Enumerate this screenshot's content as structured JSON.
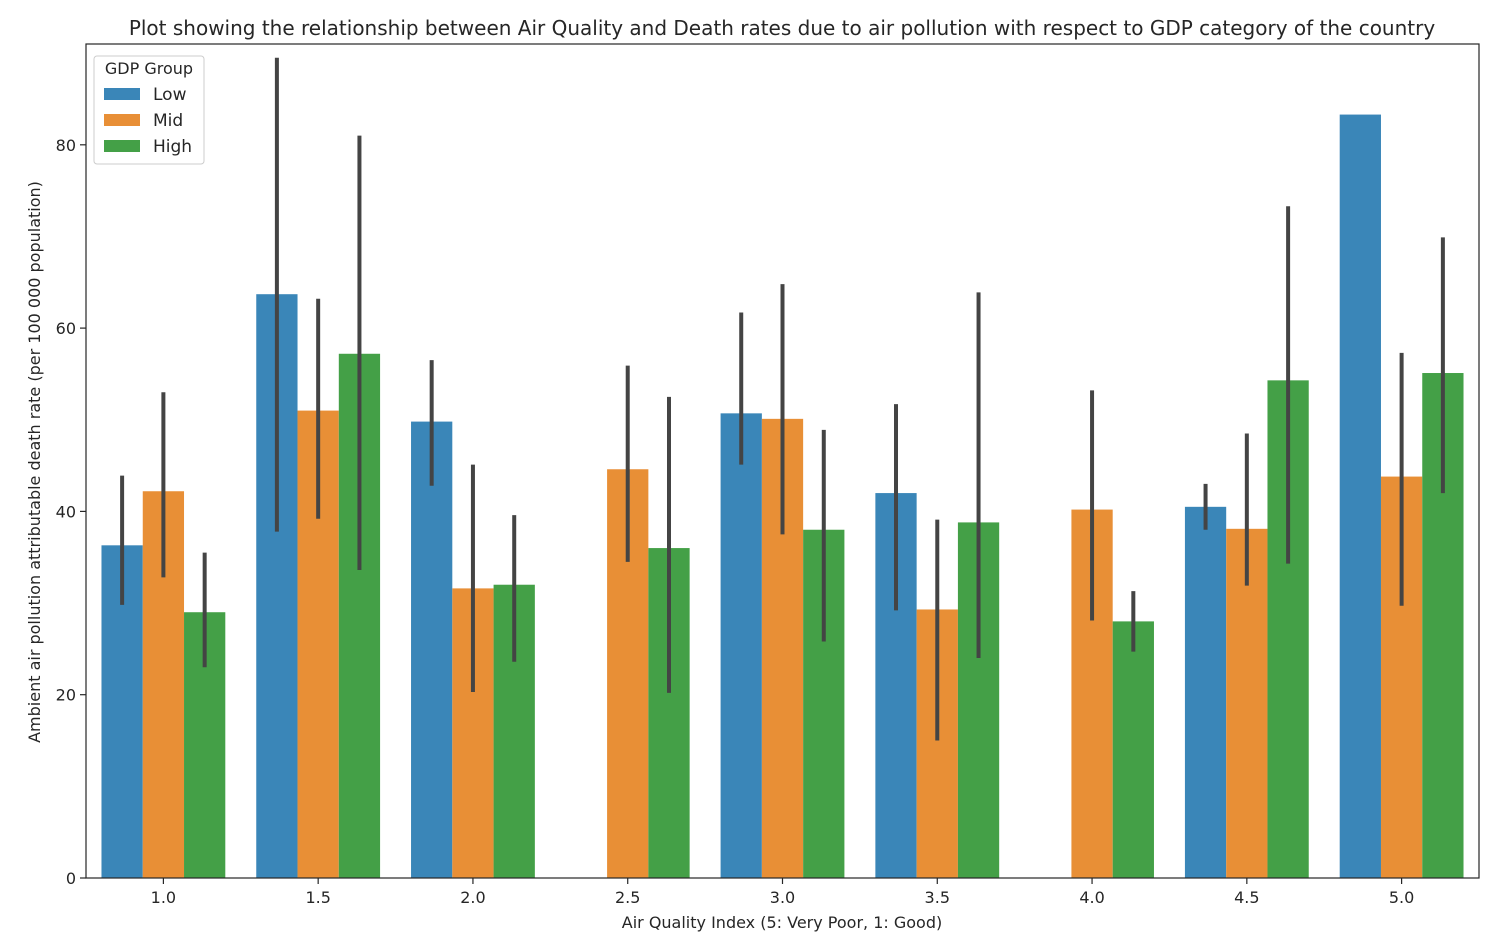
{
  "chart_data": {
    "type": "bar",
    "title": "Plot showing the relationship between Air Quality and Death rates due to air pollution with respect to GDP category of the country",
    "xlabel": "Air Quality Index (5: Very Poor, 1: Good)",
    "ylabel": "Ambient air pollution attributable death rate (per 100 000 population)",
    "categories": [
      "1.0",
      "1.5",
      "2.0",
      "2.5",
      "3.0",
      "3.5",
      "4.0",
      "4.5",
      "5.0"
    ],
    "ylim": [
      0,
      91
    ],
    "yticks": [
      0,
      20,
      40,
      60,
      80
    ],
    "grid": false,
    "legend": {
      "title": "GDP Group",
      "position": "top-left"
    },
    "series": [
      {
        "name": "Low",
        "color": "#3a86b8",
        "values": [
          36.3,
          63.7,
          49.8,
          null,
          50.7,
          42.0,
          null,
          40.5,
          83.3
        ],
        "ci_low": [
          29.8,
          37.8,
          42.8,
          null,
          45.1,
          29.2,
          null,
          38.0,
          null
        ],
        "ci_high": [
          43.9,
          89.5,
          56.5,
          null,
          61.7,
          51.7,
          null,
          43.0,
          null
        ]
      },
      {
        "name": "Mid",
        "color": "#e88f36",
        "values": [
          42.2,
          51.0,
          31.6,
          44.6,
          50.1,
          29.3,
          40.2,
          38.1,
          43.8
        ],
        "ci_low": [
          32.8,
          39.2,
          20.3,
          34.5,
          37.5,
          15.0,
          28.1,
          31.9,
          29.7
        ],
        "ci_high": [
          53.0,
          63.2,
          45.1,
          55.9,
          64.8,
          39.1,
          53.2,
          48.5,
          57.3
        ]
      },
      {
        "name": "High",
        "color": "#44a047",
        "values": [
          29.0,
          57.2,
          32.0,
          36.0,
          38.0,
          38.8,
          28.0,
          54.3,
          55.1
        ],
        "ci_low": [
          23.0,
          33.6,
          23.6,
          20.2,
          25.8,
          24.0,
          24.7,
          34.3,
          42.0
        ],
        "ci_high": [
          35.5,
          81.0,
          39.6,
          52.5,
          48.9,
          63.9,
          31.3,
          73.3,
          69.9
        ]
      }
    ]
  }
}
